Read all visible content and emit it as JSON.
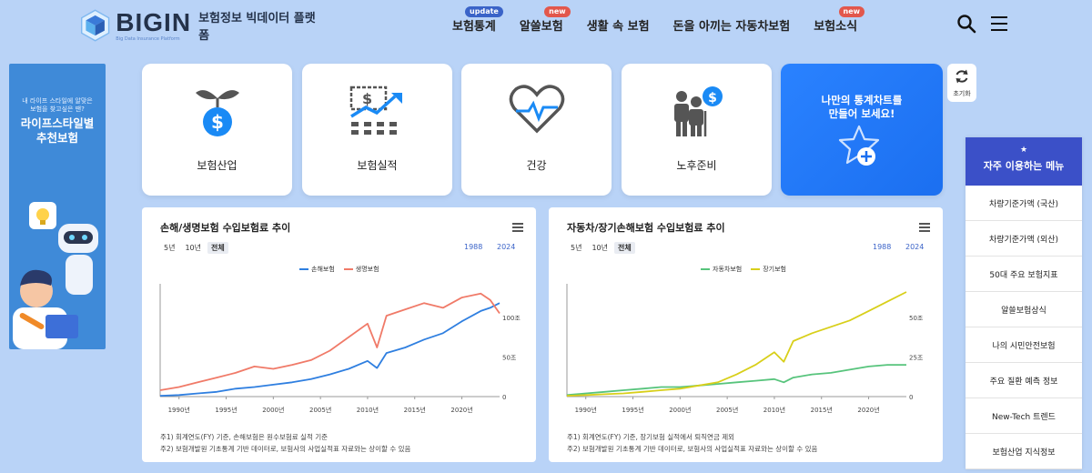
{
  "brand": {
    "name": "BIGIN",
    "sub": "Big Data Insurance Platform",
    "desc": "보험정보 빅데이터 플랫폼"
  },
  "nav": [
    {
      "label": "보험통계",
      "badge": "update",
      "badge_color": "#3a63c8"
    },
    {
      "label": "알쓸보험",
      "badge": "new",
      "badge_color": "#e2574c"
    },
    {
      "label": "생활 속 보험",
      "badge": ""
    },
    {
      "label": "돈을 아끼는 자동차보험",
      "badge": ""
    },
    {
      "label": "보험소식",
      "badge": "new",
      "badge_color": "#e2574c"
    }
  ],
  "left_banner": {
    "small_line1": "내 라이프 스타일에 알맞은",
    "small_line2": "보험을 찾고싶은 땐?",
    "big_line1": "라이프스타일별",
    "big_line2": "추천보험"
  },
  "cards": [
    {
      "label": "보험산업",
      "icon": "money-plant-icon"
    },
    {
      "label": "보험실적",
      "icon": "growth-chart-icon"
    },
    {
      "label": "건강",
      "icon": "heartbeat-icon"
    },
    {
      "label": "노후준비",
      "icon": "elderly-money-icon"
    }
  ],
  "cta": {
    "line1": "나만의 통계차트를",
    "line2": "만들어 보세요!"
  },
  "reset_label": "초기화",
  "panels": [
    {
      "title": "손해/생명보험 수입보험료 추이",
      "ranges": [
        "5년",
        "10년",
        "전체"
      ],
      "active_range": "전체",
      "year_from": "1988",
      "year_to": "2024",
      "notes": [
        "주1) 회계연도(FY) 기준, 손해보험은 원수보험료 실적 기준",
        "주2) 보험개발원 기초통계 기반 데이터로, 보험사의 사업실적표 자료와는 상이할 수 있음"
      ]
    },
    {
      "title": "자동차/장기손해보험 수입보험료 추이",
      "ranges": [
        "5년",
        "10년",
        "전체"
      ],
      "active_range": "전체",
      "year_from": "1988",
      "year_to": "2024",
      "notes": [
        "주1) 회계연도(FY) 기준, 장기보험 실적에서 퇴직연금 제외",
        "주2) 보험개발원 기초통계 기반 데이터로, 보험사의 사업실적표 자료와는 상이할 수 있음"
      ]
    }
  ],
  "chart_data": [
    {
      "type": "line",
      "title": "손해/생명보험 수입보험료 추이",
      "x": [
        1988,
        1990,
        1992,
        1994,
        1996,
        1998,
        2000,
        2002,
        2004,
        2006,
        2008,
        2010,
        2011,
        2012,
        2014,
        2016,
        2018,
        2020,
        2022,
        2023,
        2024
      ],
      "series": [
        {
          "name": "손해보험",
          "color": "#2f7fe0",
          "values": [
            1,
            2,
            4,
            6,
            10,
            12,
            15,
            18,
            22,
            28,
            35,
            45,
            36,
            55,
            62,
            72,
            80,
            95,
            108,
            112,
            118
          ]
        },
        {
          "name": "생명보험",
          "color": "#f07a68",
          "values": [
            8,
            12,
            18,
            24,
            30,
            38,
            35,
            40,
            46,
            58,
            75,
            92,
            62,
            102,
            110,
            118,
            112,
            125,
            130,
            122,
            105
          ]
        }
      ],
      "yticks": [
        {
          "v": 0,
          "label": "0"
        },
        {
          "v": 50,
          "label": "50조"
        },
        {
          "v": 100,
          "label": "100조"
        }
      ],
      "xticks": [
        "1990년",
        "1995년",
        "2000년",
        "2005년",
        "2010년",
        "2015년",
        "2020년"
      ],
      "ylim": [
        0,
        140
      ],
      "legend": "top-center"
    },
    {
      "type": "line",
      "title": "자동차/장기손해보험 수입보험료 추이",
      "x": [
        1988,
        1990,
        1992,
        1994,
        1996,
        1998,
        2000,
        2002,
        2004,
        2006,
        2008,
        2010,
        2011,
        2012,
        2014,
        2016,
        2018,
        2020,
        2022,
        2024
      ],
      "series": [
        {
          "name": "자동차보험",
          "color": "#57c47c",
          "values": [
            1,
            2,
            3,
            4,
            5,
            6,
            6,
            7,
            8,
            9,
            10,
            11,
            9,
            12,
            14,
            15,
            17,
            19,
            20,
            20
          ]
        },
        {
          "name": "장기보험",
          "color": "#d8cf1a",
          "values": [
            0.5,
            1,
            1.5,
            2,
            3,
            4,
            5,
            7,
            9,
            14,
            20,
            28,
            22,
            35,
            40,
            44,
            48,
            54,
            60,
            66
          ]
        }
      ],
      "yticks": [
        {
          "v": 0,
          "label": "0"
        },
        {
          "v": 25,
          "label": "25조"
        },
        {
          "v": 50,
          "label": "50조"
        }
      ],
      "xticks": [
        "1990년",
        "1995년",
        "2000년",
        "2005년",
        "2010년",
        "2015년",
        "2020년"
      ],
      "ylim": [
        0,
        70
      ],
      "legend": "top-center"
    }
  ],
  "right_menu": {
    "title": "자주 이용하는 메뉴",
    "items": [
      "차량기준가액 (국산)",
      "차량기준가액 (외산)",
      "50대 주요 보험지표",
      "알쓸보험상식",
      "나의 시민안전보험",
      "주요 질환 예측 정보",
      "New-Tech 트렌드",
      "보험산업 지식정보"
    ]
  }
}
